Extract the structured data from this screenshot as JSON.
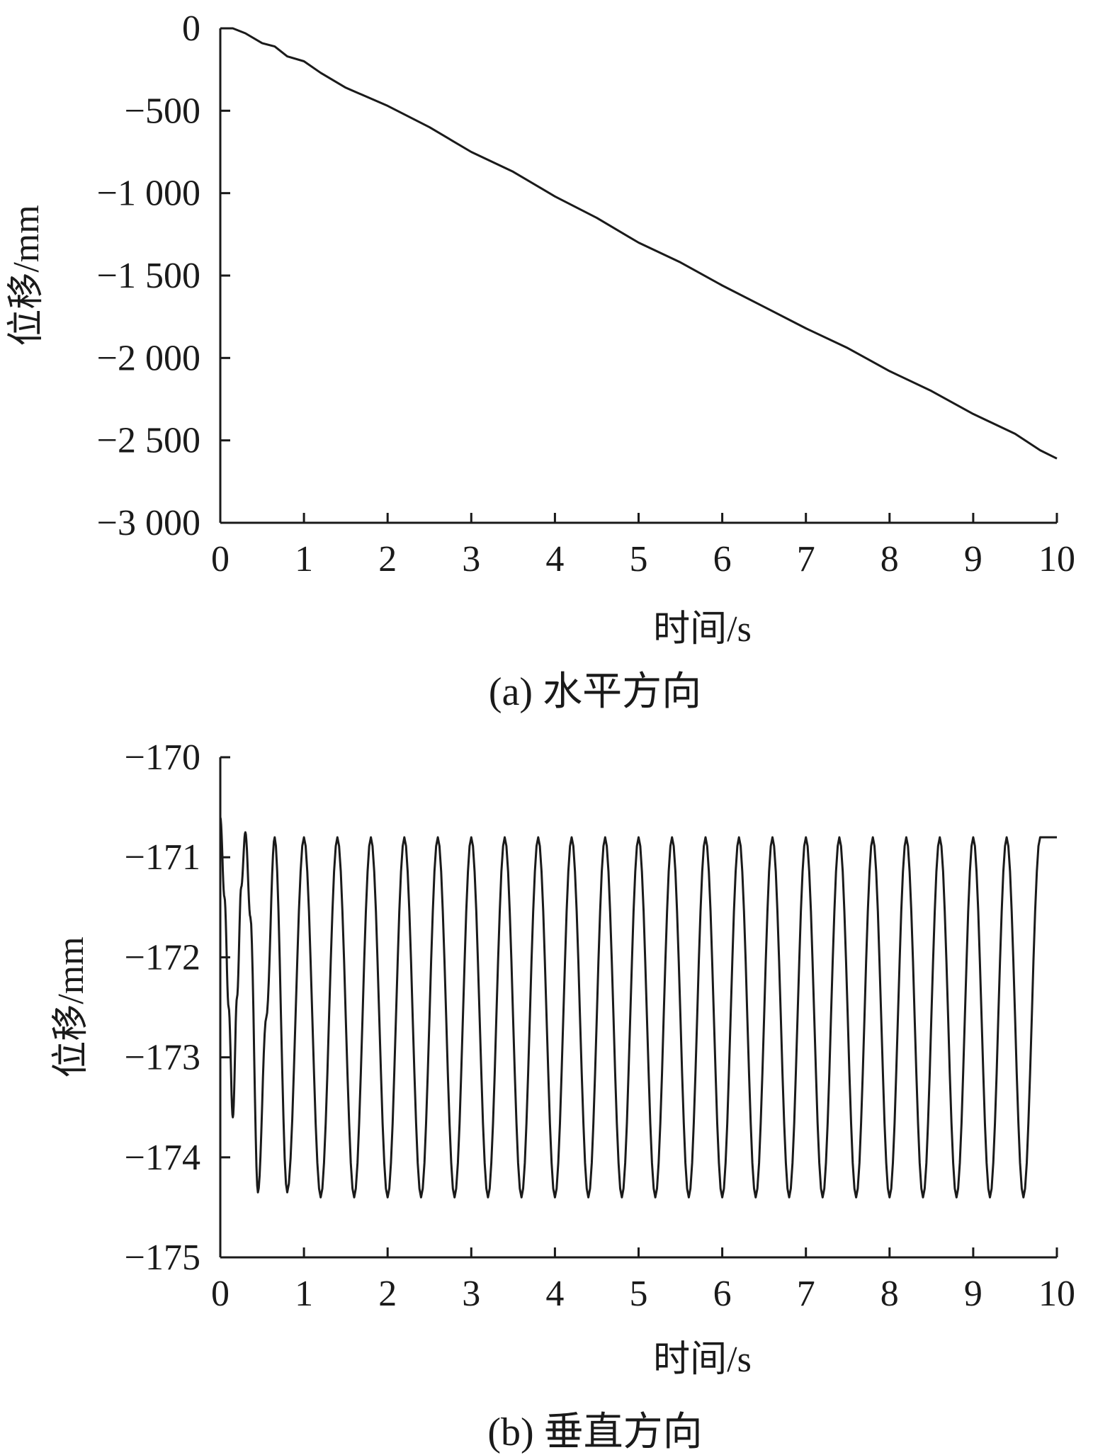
{
  "chart_data": [
    {
      "type": "line",
      "caption": "(a)  水平方向",
      "xlabel": "时间/s",
      "ylabel": "位移/mm",
      "xlim": [
        0,
        10
      ],
      "ylim": [
        -3000,
        0
      ],
      "xticks": [
        0,
        1,
        2,
        3,
        4,
        5,
        6,
        7,
        8,
        9,
        10
      ],
      "xtick_labels": [
        "0",
        "1",
        "2",
        "3",
        "4",
        "5",
        "6",
        "7",
        "8",
        "9",
        "10"
      ],
      "yticks": [
        0,
        -500,
        -1000,
        -1500,
        -2000,
        -2500,
        -3000
      ],
      "ytick_labels": [
        "0",
        "−500",
        "−1 000",
        "−1 500",
        "−2 000",
        "−2 500",
        "−3 000"
      ],
      "grid": false,
      "series": [
        {
          "x": [
            0,
            0.15,
            0.3,
            0.5,
            0.65,
            0.8,
            1,
            1.2,
            1.5,
            2,
            2.5,
            3,
            3.5,
            4,
            4.5,
            5,
            5.5,
            6,
            6.5,
            7,
            7.5,
            8,
            8.5,
            9,
            9.5,
            9.8,
            10
          ],
          "y": [
            0,
            0,
            -30,
            -90,
            -110,
            -170,
            -200,
            -270,
            -360,
            -470,
            -600,
            -750,
            -870,
            -1020,
            -1150,
            -1300,
            -1420,
            -1560,
            -1690,
            -1820,
            -1940,
            -2080,
            -2200,
            -2340,
            -2460,
            -2560,
            -2610
          ]
        }
      ]
    },
    {
      "type": "line",
      "caption": "(b)  垂直方向",
      "xlabel": "时间/s",
      "ylabel": "位移/mm",
      "xlim": [
        0,
        10
      ],
      "ylim": [
        -175,
        -170
      ],
      "xticks": [
        0,
        1,
        2,
        3,
        4,
        5,
        6,
        7,
        8,
        9,
        10
      ],
      "xtick_labels": [
        "0",
        "1",
        "2",
        "3",
        "4",
        "5",
        "6",
        "7",
        "8",
        "9",
        "10"
      ],
      "yticks": [
        -170,
        -171,
        -172,
        -173,
        -174,
        -175
      ],
      "ytick_labels": [
        "−170",
        "−171",
        "−172",
        "−173",
        "−174",
        "−175"
      ],
      "grid": false,
      "series": [
        {
          "x": [
            0,
            0.05,
            0.1,
            0.15,
            0.2,
            0.25,
            0.3,
            0.36,
            0.45,
            0.55,
            0.65,
            0.8,
            1,
            1.2,
            1.4,
            1.6,
            1.8,
            2,
            2.2,
            2.4,
            2.6,
            2.8,
            3,
            3.2,
            3.4,
            3.6,
            3.8,
            4,
            4.2,
            4.4,
            4.6,
            4.8,
            5,
            5.2,
            5.4,
            5.6,
            5.8,
            6,
            6.2,
            6.4,
            6.6,
            6.8,
            7,
            7.2,
            7.4,
            7.6,
            7.8,
            8,
            8.2,
            8.4,
            8.6,
            8.8,
            9,
            9.2,
            9.4,
            9.6,
            9.8,
            10
          ],
          "y": [
            -170.6,
            -171.4,
            -172.5,
            -173.6,
            -172.4,
            -171.3,
            -170.75,
            -171.6,
            -174.35,
            -172.6,
            -170.8,
            -174.35,
            -170.8,
            -174.4,
            -170.8,
            -174.4,
            -170.8,
            -174.4,
            -170.8,
            -174.4,
            -170.8,
            -174.4,
            -170.8,
            -174.4,
            -170.8,
            -174.4,
            -170.8,
            -174.4,
            -170.8,
            -174.4,
            -170.8,
            -174.4,
            -170.8,
            -174.4,
            -170.8,
            -174.4,
            -170.8,
            -174.4,
            -170.8,
            -174.4,
            -170.8,
            -174.4,
            -170.8,
            -174.4,
            -170.8,
            -174.4,
            -170.8,
            -174.4,
            -170.8,
            -174.4,
            -170.8,
            -174.4,
            -170.8,
            -174.4,
            -170.8,
            -174.4,
            -170.8,
            -170.8
          ]
        }
      ]
    }
  ]
}
